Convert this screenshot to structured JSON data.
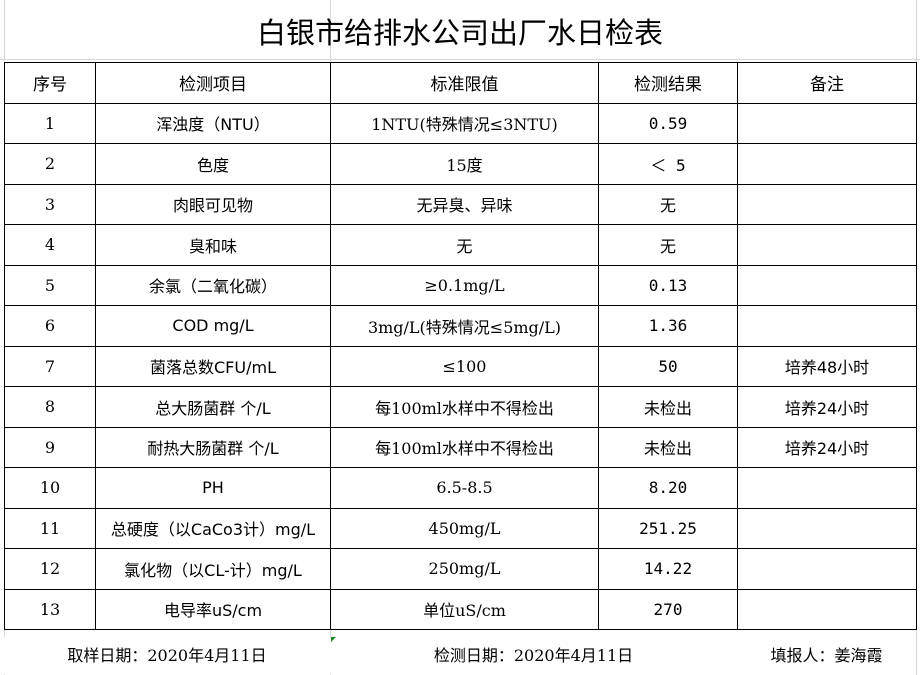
{
  "title": "白银市给排水公司出厂水日检表",
  "headers": [
    "序号",
    "检测项目",
    "标准限值",
    "检测结果",
    "备注"
  ],
  "rows": [
    [
      "1",
      "浑浊度（NTU）",
      "1NTU(特殊情况≤3NTU)",
      "0.59",
      ""
    ],
    [
      "2",
      "色度",
      "15度",
      "＜ 5",
      ""
    ],
    [
      "3",
      "肉眼可见物",
      "无异臭、异味",
      "无",
      ""
    ],
    [
      "4",
      "臭和味",
      "无",
      "无",
      ""
    ],
    [
      "5",
      "余氯（二氧化碳）",
      "≥0.1mg/L",
      "0.13",
      ""
    ],
    [
      "6",
      "COD          mg/L",
      "3mg/L(特殊情况≤5mg/L)",
      "1.36",
      ""
    ],
    [
      "7",
      "菌落总数CFU/mL",
      "≤100",
      "50",
      "培养48小时"
    ],
    [
      "8",
      "总大肠菌群 个/L",
      "每100ml水样中不得检出",
      "未检出",
      "培养24小时"
    ],
    [
      "9",
      "耐热大肠菌群 个/L",
      "每100ml水样中不得检出",
      "未检出",
      "培养24小时"
    ],
    [
      "10",
      "PH",
      "6.5-8.5",
      "8.20",
      ""
    ],
    [
      "11",
      "总硬度（以CaCo3计）mg/L",
      "450mg/L",
      "251.25",
      ""
    ],
    [
      "12",
      "氯化物（以CL-计）mg/L",
      "250mg/L",
      "14.22",
      ""
    ],
    [
      "13",
      "电导率uS/cm",
      "单位uS/cm",
      "270",
      ""
    ]
  ],
  "footer": {
    "sampling_date": "取样日期：2020年4月11日",
    "test_date": "检测日期：2020年4月11日",
    "reporter": "填报人：姜海霞"
  }
}
